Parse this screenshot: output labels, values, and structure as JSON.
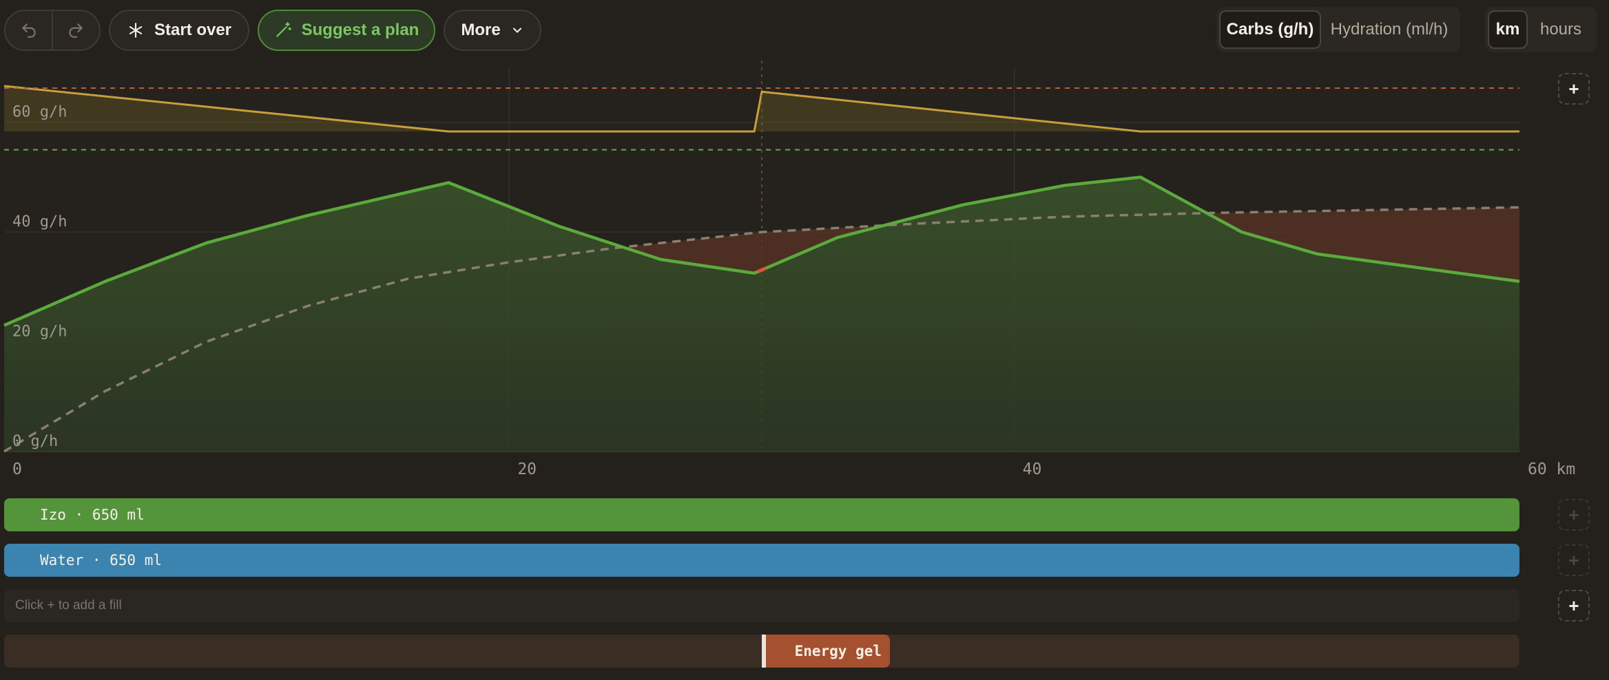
{
  "toolbar": {
    "undo_icon": "undo-icon",
    "redo_icon": "redo-icon",
    "start_over_label": "Start over",
    "start_over_icon": "asterisk-icon",
    "suggest_label": "Suggest a plan",
    "suggest_icon": "magic-wand-icon",
    "more_label": "More",
    "more_icon": "chevron-down-icon",
    "mode_options": [
      "Carbs (g/h)",
      "Hydration (ml/h)"
    ],
    "mode_selected": "Carbs (g/h)",
    "unit_options": [
      "km",
      "hours"
    ],
    "unit_selected": "km"
  },
  "chart_data": {
    "type": "line",
    "xlim": [
      0,
      60
    ],
    "ylim": [
      0,
      70
    ],
    "x_ticks": [
      "0",
      "20",
      "40",
      "60 km"
    ],
    "y_ticks": [
      "0 g/h",
      "20 g/h",
      "40 g/h",
      "60 g/h"
    ],
    "reference_lines": [
      {
        "y": 55,
        "color": "#6aa84f"
      }
    ],
    "cursor_x": 30,
    "series": [
      {
        "color": "#5aab3c",
        "x": [
          0,
          4,
          8,
          12,
          17.6,
          22,
          26,
          29.7,
          33,
          38,
          42,
          45,
          49,
          52,
          56,
          60
        ],
        "y": [
          23,
          31,
          38,
          43,
          49,
          41,
          35,
          32.5,
          39,
          45,
          48.5,
          50,
          40,
          36,
          33.5,
          31
        ]
      },
      {
        "color": "#8a7f70",
        "dashed": true,
        "x": [
          0,
          4,
          8,
          12,
          16,
          20,
          24,
          30,
          36,
          42,
          48,
          54,
          60
        ],
        "y": [
          0,
          11,
          20,
          26.5,
          31.5,
          34.5,
          37,
          40,
          41.5,
          42.8,
          43.5,
          44,
          44.5
        ]
      }
    ],
    "carry_series": {
      "color": "#c8a03b",
      "x": [
        0,
        17.6,
        29.7,
        30,
        45,
        60
      ],
      "y": [
        4,
        0,
        0,
        3.5,
        0,
        0
      ]
    }
  },
  "fills": [
    {
      "label": "Izo · 650 ml",
      "color": "#54953b"
    },
    {
      "label": "Water · 650 ml",
      "color": "#3b84b0"
    }
  ],
  "empty_fill_hint": "Click + to add a fill",
  "add_icon": "plus-icon",
  "events": [
    {
      "label": "Energy gel",
      "x": 30,
      "color": "#a5512f"
    }
  ]
}
